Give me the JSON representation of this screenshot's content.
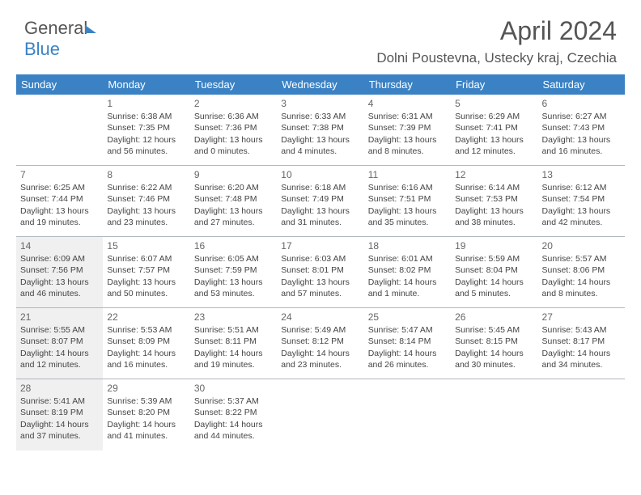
{
  "logo": {
    "part1": "General",
    "part2": "Blue"
  },
  "title": "April 2024",
  "location": "Dolni Poustevna, Ustecky kraj, Czechia",
  "day_headers": [
    "Sunday",
    "Monday",
    "Tuesday",
    "Wednesday",
    "Thursday",
    "Friday",
    "Saturday"
  ],
  "style": {
    "header_bg": "#3b82c4",
    "header_color": "#ffffff",
    "shaded_bg": "#f0f0f0",
    "border_color": "#b0b8c0",
    "text_color": "#444444",
    "day_fontsize": 10.5,
    "header_fontsize": 13,
    "title_fontsize": 32,
    "location_fontsize": 17
  },
  "weeks": [
    [
      {
        "blank": true
      },
      {
        "num": "1",
        "sunrise": "Sunrise: 6:38 AM",
        "sunset": "Sunset: 7:35 PM",
        "daylight": "Daylight: 12 hours and 56 minutes."
      },
      {
        "num": "2",
        "sunrise": "Sunrise: 6:36 AM",
        "sunset": "Sunset: 7:36 PM",
        "daylight": "Daylight: 13 hours and 0 minutes."
      },
      {
        "num": "3",
        "sunrise": "Sunrise: 6:33 AM",
        "sunset": "Sunset: 7:38 PM",
        "daylight": "Daylight: 13 hours and 4 minutes."
      },
      {
        "num": "4",
        "sunrise": "Sunrise: 6:31 AM",
        "sunset": "Sunset: 7:39 PM",
        "daylight": "Daylight: 13 hours and 8 minutes."
      },
      {
        "num": "5",
        "sunrise": "Sunrise: 6:29 AM",
        "sunset": "Sunset: 7:41 PM",
        "daylight": "Daylight: 13 hours and 12 minutes."
      },
      {
        "num": "6",
        "sunrise": "Sunrise: 6:27 AM",
        "sunset": "Sunset: 7:43 PM",
        "daylight": "Daylight: 13 hours and 16 minutes."
      }
    ],
    [
      {
        "num": "7",
        "sunrise": "Sunrise: 6:25 AM",
        "sunset": "Sunset: 7:44 PM",
        "daylight": "Daylight: 13 hours and 19 minutes."
      },
      {
        "num": "8",
        "sunrise": "Sunrise: 6:22 AM",
        "sunset": "Sunset: 7:46 PM",
        "daylight": "Daylight: 13 hours and 23 minutes."
      },
      {
        "num": "9",
        "sunrise": "Sunrise: 6:20 AM",
        "sunset": "Sunset: 7:48 PM",
        "daylight": "Daylight: 13 hours and 27 minutes."
      },
      {
        "num": "10",
        "sunrise": "Sunrise: 6:18 AM",
        "sunset": "Sunset: 7:49 PM",
        "daylight": "Daylight: 13 hours and 31 minutes."
      },
      {
        "num": "11",
        "sunrise": "Sunrise: 6:16 AM",
        "sunset": "Sunset: 7:51 PM",
        "daylight": "Daylight: 13 hours and 35 minutes."
      },
      {
        "num": "12",
        "sunrise": "Sunrise: 6:14 AM",
        "sunset": "Sunset: 7:53 PM",
        "daylight": "Daylight: 13 hours and 38 minutes."
      },
      {
        "num": "13",
        "sunrise": "Sunrise: 6:12 AM",
        "sunset": "Sunset: 7:54 PM",
        "daylight": "Daylight: 13 hours and 42 minutes."
      }
    ],
    [
      {
        "num": "14",
        "sunrise": "Sunrise: 6:09 AM",
        "sunset": "Sunset: 7:56 PM",
        "daylight": "Daylight: 13 hours and 46 minutes.",
        "shaded": true
      },
      {
        "num": "15",
        "sunrise": "Sunrise: 6:07 AM",
        "sunset": "Sunset: 7:57 PM",
        "daylight": "Daylight: 13 hours and 50 minutes."
      },
      {
        "num": "16",
        "sunrise": "Sunrise: 6:05 AM",
        "sunset": "Sunset: 7:59 PM",
        "daylight": "Daylight: 13 hours and 53 minutes."
      },
      {
        "num": "17",
        "sunrise": "Sunrise: 6:03 AM",
        "sunset": "Sunset: 8:01 PM",
        "daylight": "Daylight: 13 hours and 57 minutes."
      },
      {
        "num": "18",
        "sunrise": "Sunrise: 6:01 AM",
        "sunset": "Sunset: 8:02 PM",
        "daylight": "Daylight: 14 hours and 1 minute."
      },
      {
        "num": "19",
        "sunrise": "Sunrise: 5:59 AM",
        "sunset": "Sunset: 8:04 PM",
        "daylight": "Daylight: 14 hours and 5 minutes."
      },
      {
        "num": "20",
        "sunrise": "Sunrise: 5:57 AM",
        "sunset": "Sunset: 8:06 PM",
        "daylight": "Daylight: 14 hours and 8 minutes."
      }
    ],
    [
      {
        "num": "21",
        "sunrise": "Sunrise: 5:55 AM",
        "sunset": "Sunset: 8:07 PM",
        "daylight": "Daylight: 14 hours and 12 minutes.",
        "shaded": true
      },
      {
        "num": "22",
        "sunrise": "Sunrise: 5:53 AM",
        "sunset": "Sunset: 8:09 PM",
        "daylight": "Daylight: 14 hours and 16 minutes."
      },
      {
        "num": "23",
        "sunrise": "Sunrise: 5:51 AM",
        "sunset": "Sunset: 8:11 PM",
        "daylight": "Daylight: 14 hours and 19 minutes."
      },
      {
        "num": "24",
        "sunrise": "Sunrise: 5:49 AM",
        "sunset": "Sunset: 8:12 PM",
        "daylight": "Daylight: 14 hours and 23 minutes."
      },
      {
        "num": "25",
        "sunrise": "Sunrise: 5:47 AM",
        "sunset": "Sunset: 8:14 PM",
        "daylight": "Daylight: 14 hours and 26 minutes."
      },
      {
        "num": "26",
        "sunrise": "Sunrise: 5:45 AM",
        "sunset": "Sunset: 8:15 PM",
        "daylight": "Daylight: 14 hours and 30 minutes."
      },
      {
        "num": "27",
        "sunrise": "Sunrise: 5:43 AM",
        "sunset": "Sunset: 8:17 PM",
        "daylight": "Daylight: 14 hours and 34 minutes."
      }
    ],
    [
      {
        "num": "28",
        "sunrise": "Sunrise: 5:41 AM",
        "sunset": "Sunset: 8:19 PM",
        "daylight": "Daylight: 14 hours and 37 minutes.",
        "shaded": true
      },
      {
        "num": "29",
        "sunrise": "Sunrise: 5:39 AM",
        "sunset": "Sunset: 8:20 PM",
        "daylight": "Daylight: 14 hours and 41 minutes."
      },
      {
        "num": "30",
        "sunrise": "Sunrise: 5:37 AM",
        "sunset": "Sunset: 8:22 PM",
        "daylight": "Daylight: 14 hours and 44 minutes."
      },
      {
        "blank": true
      },
      {
        "blank": true
      },
      {
        "blank": true
      },
      {
        "blank": true
      }
    ]
  ]
}
